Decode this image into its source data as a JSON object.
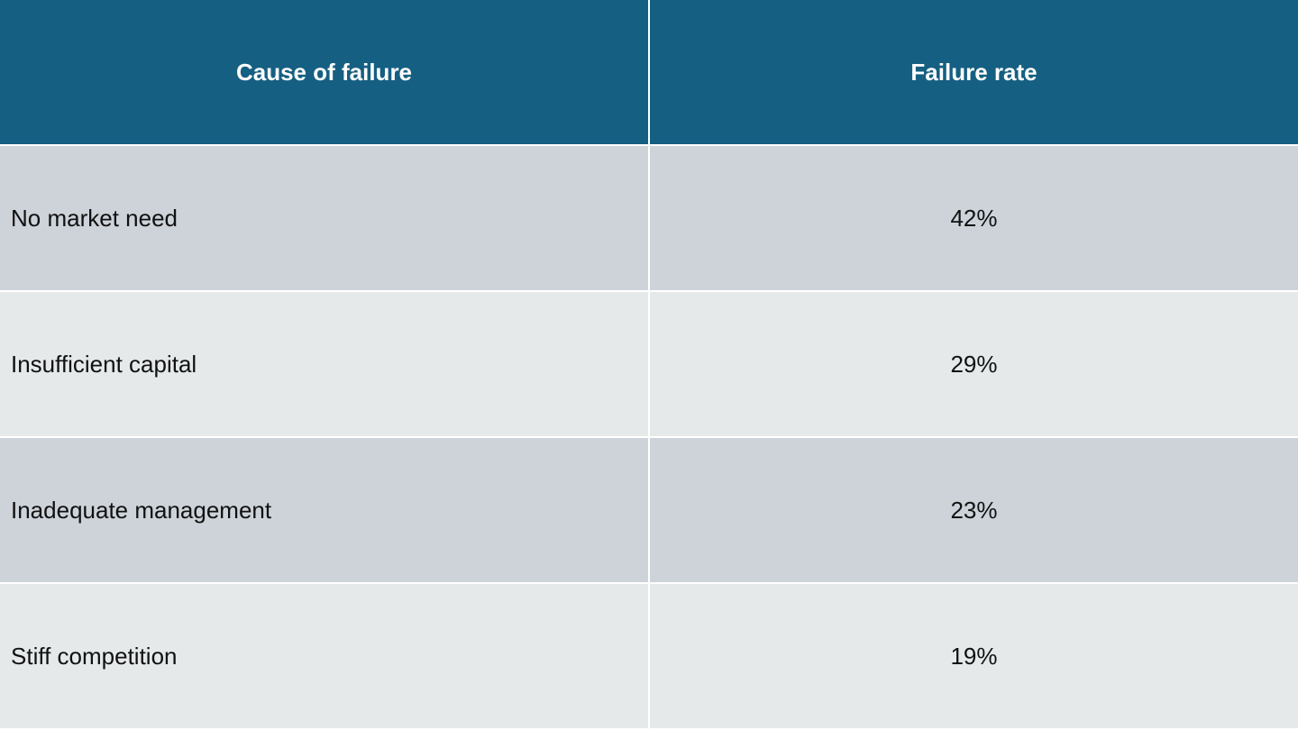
{
  "table": {
    "header": [
      "Cause of failure",
      "Failure rate"
    ],
    "rows": [
      [
        "No market need",
        "42%"
      ],
      [
        "Insufficient capital",
        "29%"
      ],
      [
        "Inadequate management",
        "23%"
      ],
      [
        "Stiff competition",
        "19%"
      ]
    ]
  }
}
